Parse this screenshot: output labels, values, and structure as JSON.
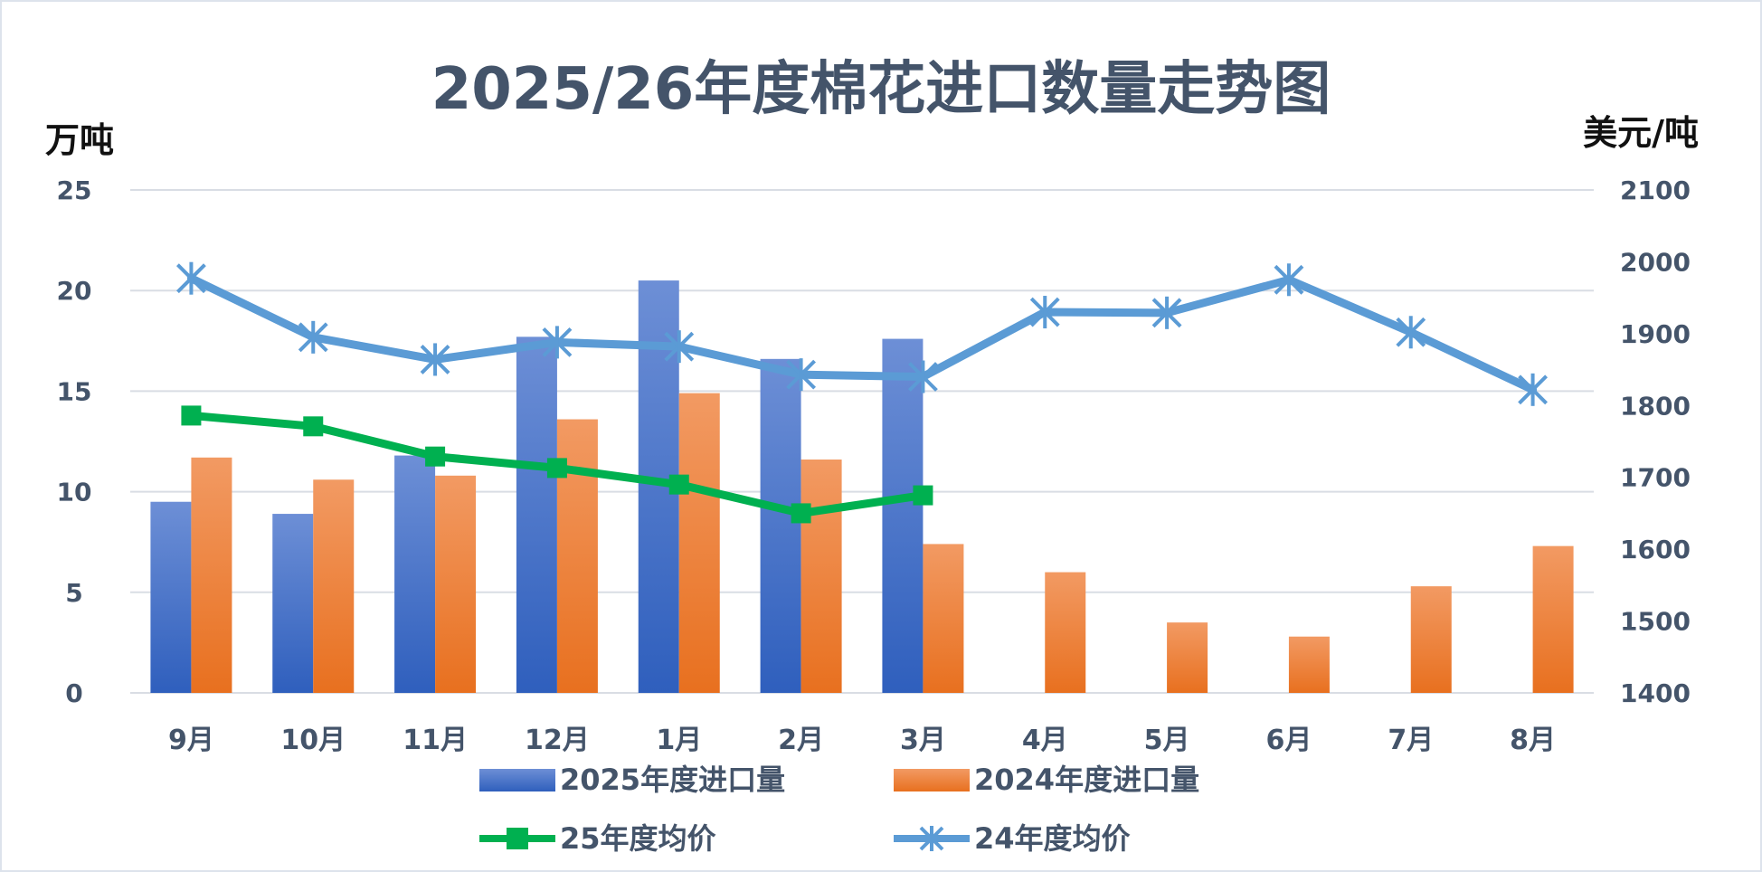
{
  "chart_data": {
    "type": "bar+line",
    "title": "2025/26年度棉花进口数量走势图",
    "ylabel_left": "万吨",
    "ylabel_right": "美元/吨",
    "ylim_left": [
      0,
      25
    ],
    "yticks_left": [
      0,
      5,
      10,
      15,
      20,
      25
    ],
    "ylim_right": [
      1400,
      2100
    ],
    "yticks_right": [
      1400,
      1500,
      1600,
      1700,
      1800,
      1900,
      2000,
      2100
    ],
    "grid": true,
    "legend_position": "bottom",
    "categories": [
      "9月",
      "10月",
      "11月",
      "12月",
      "1月",
      "2月",
      "3月",
      "4月",
      "5月",
      "6月",
      "7月",
      "8月"
    ],
    "series": [
      {
        "name": "2025年度进口量",
        "kind": "bar",
        "axis": "left",
        "color": "#4472c4",
        "values": [
          9.5,
          8.9,
          11.8,
          17.7,
          20.5,
          16.6,
          17.6,
          null,
          null,
          null,
          null,
          null
        ]
      },
      {
        "name": "2024年度进口量",
        "kind": "bar",
        "axis": "left",
        "color": "#ed7d31",
        "values": [
          11.7,
          10.6,
          10.8,
          13.6,
          14.9,
          11.6,
          7.4,
          6.0,
          3.5,
          2.8,
          5.3,
          7.3
        ]
      },
      {
        "name": "25年度均价",
        "kind": "line",
        "marker": "square",
        "axis": "right",
        "color": "#00b050",
        "values": [
          1786,
          1771,
          1729,
          1713,
          1690,
          1650,
          1675,
          null,
          null,
          null,
          null,
          null
        ]
      },
      {
        "name": "24年度均价",
        "kind": "line",
        "marker": "star",
        "axis": "right",
        "color": "#5b9bd5",
        "values": [
          1977,
          1895,
          1864,
          1888,
          1882,
          1843,
          1840,
          1930,
          1929,
          1975,
          1902,
          1822
        ]
      }
    ]
  }
}
